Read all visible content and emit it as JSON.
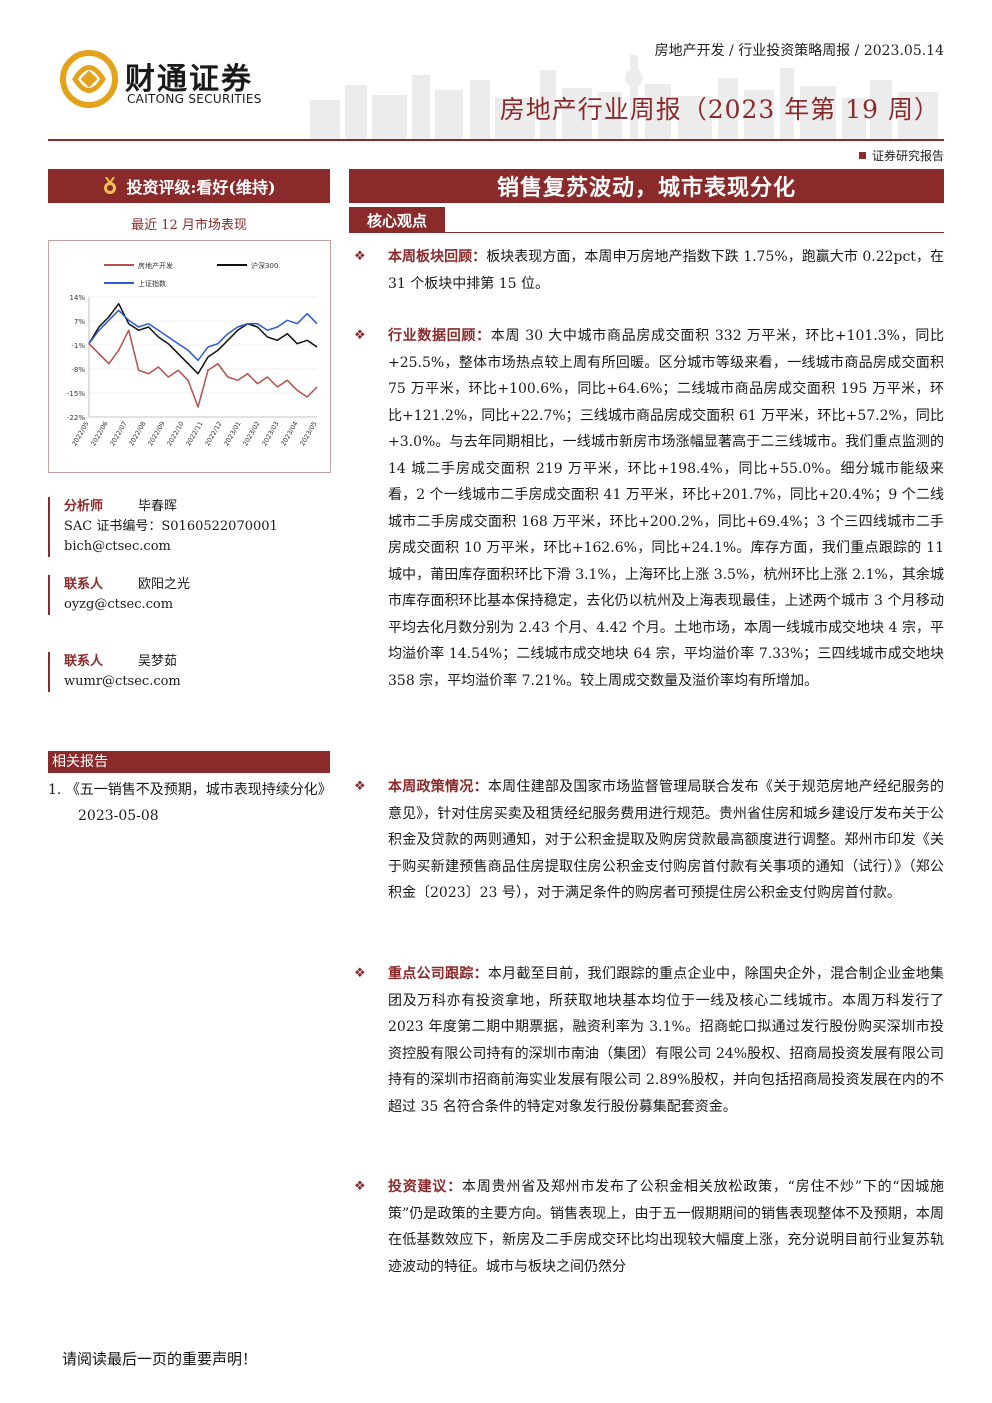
{
  "header": {
    "logo_cn": "财通证券",
    "logo_en": "CAITONG SECURITIES",
    "breadcrumb": "房地产开发 / 行业投资策略周报 / 2023.05.14",
    "report_title": "房地产行业周报（2023 年第 19 周）",
    "report_type": "证券研究报告"
  },
  "sidebar": {
    "rating": "投资评级:看好(维持)",
    "market_caption": "最近 12 月市场表现",
    "analysts": [
      {
        "role": "分析师",
        "name": "毕春晖",
        "cert": "SAC 证书编号：S0160522070001",
        "email": "bich@ctsec.com"
      },
      {
        "role": "联系人",
        "name": "欧阳之光",
        "cert": "",
        "email": "oyzg@ctsec.com"
      },
      {
        "role": "联系人",
        "name": "吴梦茹",
        "cert": "",
        "email": "wumr@ctsec.com"
      }
    ],
    "related_head": "相关报告",
    "related_items": [
      {
        "index": "1.",
        "title": "《五一销售不及预期，城市表现持续分化》",
        "date": "2023-05-08"
      }
    ]
  },
  "main": {
    "headline": "销售复苏波动，城市表现分化",
    "core_tab": "核心观点",
    "paragraphs": [
      {
        "lead": "本周板块回顾：",
        "body": "板块表现方面，本周申万房地产指数下跌 1.75%，跑赢大市 0.22pct，在 31 个板块中排第 15 位。"
      },
      {
        "lead": "行业数据回顾：",
        "body": "本周 30 大中城市商品房成交面积 332 万平米，环比+101.3%，同比+25.5%，整体市场热点较上周有所回暖。区分城市等级来看，一线城市商品房成交面积 75 万平米，环比+100.6%，同比+64.6%；二线城市商品房成交面积 195 万平米，环比+121.2%，同比+22.7%；三线城市商品房成交面积 61 万平米，环比+57.2%，同比+3.0%。与去年同期相比，一线城市新房市场涨幅显著高于二三线城市。我们重点监测的 14 城二手房成交面积 219 万平米，环比+198.4%，同比+55.0%。细分城市能级来看，2 个一线城市二手房成交面积 41 万平米，环比+201.7%，同比+20.4%；9 个二线城市二手房成交面积 168 万平米，环比+200.2%，同比+69.4%；3 个三四线城市二手房成交面积 10 万平米，环比+162.6%，同比+24.1%。库存方面，我们重点跟踪的 11 城中，莆田库存面积环比下滑 3.1%，上海环比上涨 3.5%，杭州环比上涨 2.1%，其余城市库存面积环比基本保持稳定，去化仍以杭州及上海表现最佳，上述两个城市 3 个月移动平均去化月数分别为 2.43 个月、4.42 个月。土地市场，本周一线城市成交地块 4 宗，平均溢价率 14.54%；二线城市成交地块 64 宗，平均溢价率 7.33%；三四线城市成交地块 358 宗，平均溢价率 7.21%。较上周成交数量及溢价率均有所增加。"
      },
      {
        "lead": "本周政策情况：",
        "body": "本周住建部及国家市场监督管理局联合发布《关于规范房地产经纪服务的意见》，针对住房买卖及租赁经纪服务费用进行规范。贵州省住房和城乡建设厅发布关于公积金及贷款的两则通知，对于公积金提取及购房贷款最高额度进行调整。郑州市印发《关于购买新建预售商品住房提取住房公积金支付购房首付款有关事项的通知（试行）》（郑公积金〔2023〕23 号），对于满足条件的购房者可预提住房公积金支付购房首付款。"
      },
      {
        "lead": "重点公司跟踪：",
        "body": "本月截至目前，我们跟踪的重点企业中，除国央企外，混合制企业金地集团及万科亦有投资拿地，所获取地块基本均位于一线及核心二线城市。本周万科发行了 2023 年度第二期中期票据，融资利率为 3.1%。招商蛇口拟通过发行股份购买深圳市投资控股有限公司持有的深圳市南油（集团）有限公司 24%股权、招商局投资发展有限公司持有的深圳市招商前海实业发展有限公司 2.89%股权，并向包括招商局投资发展在内的不超过 35 名符合条件的特定对象发行股份募集配套资金。"
      },
      {
        "lead": "投资建议：",
        "body": "本周贵州省及郑州市发布了公积金相关放松政策，“房住不炒”下的“因城施策”仍是政策的主要方向。销售表现上，由于五一假期期间的销售表现整体不及预期，本周在低基数效应下，新房及二手房成交环比均出现较大幅度上涨，充分说明目前行业复苏轨迹波动的特征。城市与板块之间仍然分"
      }
    ]
  },
  "chart_data": {
    "type": "line",
    "title": "",
    "legend": [
      "房地产开发",
      "沪深300",
      "上证指数"
    ],
    "legend_position": "top",
    "y_ticks": [
      "14%",
      "7%",
      "-1%",
      "-8%",
      "-15%",
      "-22%"
    ],
    "ylim": [
      -22,
      14
    ],
    "x_ticks": [
      "2022/05",
      "2022/06",
      "2022/07",
      "2022/08",
      "2022/09",
      "2022/10",
      "2022/11",
      "2022/12",
      "2023/01",
      "2023/02",
      "2023/03",
      "2023/04",
      "2023/05"
    ],
    "series": [
      {
        "name": "房地产开发",
        "color": "#b5504a",
        "values": [
          0,
          -3,
          -6,
          -2,
          4,
          -8,
          -9,
          -7,
          -10,
          -8,
          -11,
          -19,
          -8,
          -6,
          -10,
          -11,
          -9,
          -12,
          -10,
          -13,
          -11,
          -14,
          -16,
          -13
        ]
      },
      {
        "name": "沪深300",
        "color": "#111111",
        "values": [
          0,
          5,
          8,
          12,
          6,
          4,
          5,
          2,
          0,
          -3,
          -6,
          -9,
          -4,
          -2,
          1,
          4,
          6,
          5,
          2,
          1,
          3,
          0,
          1,
          -1
        ]
      },
      {
        "name": "上证指数",
        "color": "#2f5bd0",
        "values": [
          0,
          4,
          7,
          10,
          7,
          5,
          6,
          4,
          2,
          0,
          -2,
          -5,
          -1,
          0,
          3,
          5,
          6,
          6,
          4,
          5,
          7,
          6,
          9,
          6
        ]
      }
    ]
  },
  "footer": {
    "note": "请阅读最后一页的重要声明！"
  }
}
